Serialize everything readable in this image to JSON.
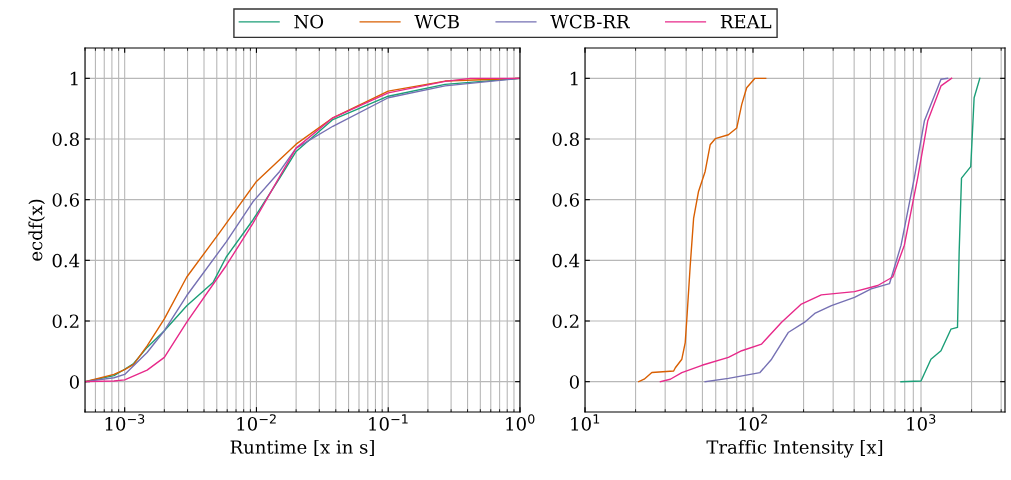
{
  "chart_data": [
    {
      "type": "line",
      "xlabel": "Runtime [x in s]",
      "ylabel": "ecdf(x)",
      "log": "x",
      "xlim": [
        0.0005,
        1
      ],
      "xticks": [
        {
          "value": 0.001,
          "label": "10$^{−3}$"
        },
        {
          "value": 0.01,
          "label": "10$^{−2}$"
        },
        {
          "value": 0.1,
          "label": "10$^{−1}$"
        },
        {
          "value": 1,
          "label": "10$^{0}$"
        }
      ],
      "ylim": [
        -0.1,
        1.1
      ],
      "yticks": [
        0,
        0.2,
        0.4,
        0.6,
        0.8,
        1
      ],
      "grid": true,
      "legend": "top",
      "series": [
        {
          "name": "NO",
          "color": "#1b9e77",
          "x": [
            0.0005,
            0.00083,
            0.001,
            0.00117,
            0.00148,
            0.002,
            0.00296,
            0.0047,
            0.0059,
            0.0094,
            0.015,
            0.02,
            0.038,
            0.1,
            0.27,
            1
          ],
          "values": [
            0,
            0.02,
            0.041,
            0.06,
            0.113,
            0.168,
            0.25,
            0.328,
            0.411,
            0.533,
            0.671,
            0.759,
            0.864,
            0.941,
            0.98,
            1
          ]
        },
        {
          "name": "WCB",
          "color": "#d95f02",
          "x": [
            0.0005,
            0.00083,
            0.001,
            0.00117,
            0.00148,
            0.002,
            0.00296,
            0.0053,
            0.01,
            0.02,
            0.038,
            0.1,
            0.27,
            1
          ],
          "values": [
            0,
            0.024,
            0.04,
            0.057,
            0.118,
            0.207,
            0.345,
            0.494,
            0.66,
            0.783,
            0.87,
            0.958,
            0.991,
            1
          ]
        },
        {
          "name": "WCB-RR",
          "color": "#7570b3",
          "x": [
            0.0005,
            0.00083,
            0.001,
            0.00148,
            0.002,
            0.00296,
            0.0059,
            0.0094,
            0.015,
            0.02,
            0.038,
            0.1,
            0.27,
            1
          ],
          "values": [
            0,
            0.013,
            0.024,
            0.096,
            0.168,
            0.284,
            0.461,
            0.593,
            0.693,
            0.77,
            0.842,
            0.936,
            0.975,
            1
          ]
        },
        {
          "name": "REAL",
          "color": "#e7298a",
          "x": [
            0.0005,
            0.00083,
            0.001,
            0.00148,
            0.002,
            0.00296,
            0.0059,
            0.0094,
            0.015,
            0.02,
            0.038,
            0.1,
            0.27,
            0.42,
            1
          ],
          "values": [
            0,
            0.002,
            0.006,
            0.038,
            0.08,
            0.196,
            0.383,
            0.522,
            0.676,
            0.77,
            0.87,
            0.952,
            0.99,
            1,
            1
          ]
        }
      ]
    },
    {
      "type": "line",
      "xlabel": "Traffic Intensity [x]",
      "log": "x",
      "xlim": [
        10,
        3162
      ],
      "xticks": [
        {
          "value": 10,
          "label": "10$^{1}$"
        },
        {
          "value": 100,
          "label": "10$^{2}$"
        },
        {
          "value": 1000,
          "label": "10$^{3}$"
        }
      ],
      "ylim": [
        -0.1,
        1.1
      ],
      "yticks": [
        0,
        0.2,
        0.4,
        0.6,
        0.8,
        1
      ],
      "grid": true,
      "series": [
        {
          "color": "#1b9e77",
          "x": [
            760,
            1000,
            1146,
            1315,
            1507,
            1649,
            1687,
            1742,
            1977,
            2071,
            2239
          ],
          "values": [
            0,
            0.002,
            0.074,
            0.102,
            0.173,
            0.179,
            0.428,
            0.671,
            0.709,
            0.936,
            1
          ]
        },
        {
          "color": "#d95f02",
          "x": [
            20.9,
            22.5,
            25,
            33.7,
            34.5,
            37.7,
            39.5,
            40.5,
            42.3,
            44.3,
            47.4,
            51.9,
            55.6,
            59.6,
            71.4,
            80,
            85.7,
            91.7,
            102.7,
            119
          ],
          "values": [
            0,
            0.008,
            0.03,
            0.035,
            0.046,
            0.074,
            0.129,
            0.218,
            0.383,
            0.538,
            0.627,
            0.693,
            0.781,
            0.801,
            0.814,
            0.836,
            0.914,
            0.969,
            1,
            1
          ]
        },
        {
          "color": "#7570b3",
          "x": [
            51.9,
            71.4,
            110,
            129,
            162,
            203,
            233,
            293,
            402,
            505,
            649,
            761,
            912,
            1047,
            1315,
            1439
          ],
          "values": [
            0,
            0.011,
            0.03,
            0.074,
            0.162,
            0.196,
            0.225,
            0.251,
            0.278,
            0.306,
            0.323,
            0.45,
            0.671,
            0.859,
            0.997,
            1
          ]
        },
        {
          "color": "#e7298a",
          "x": [
            28.1,
            32.2,
            37.7,
            49.7,
            71.4,
            85.7,
            112.5,
            148,
            194,
            255,
            402,
            553,
            679,
            796,
            955,
            1096,
            1315,
            1521
          ],
          "values": [
            0,
            0.008,
            0.03,
            0.054,
            0.08,
            0.102,
            0.124,
            0.196,
            0.256,
            0.286,
            0.297,
            0.317,
            0.345,
            0.45,
            0.671,
            0.859,
            0.975,
            1
          ]
        }
      ]
    }
  ]
}
